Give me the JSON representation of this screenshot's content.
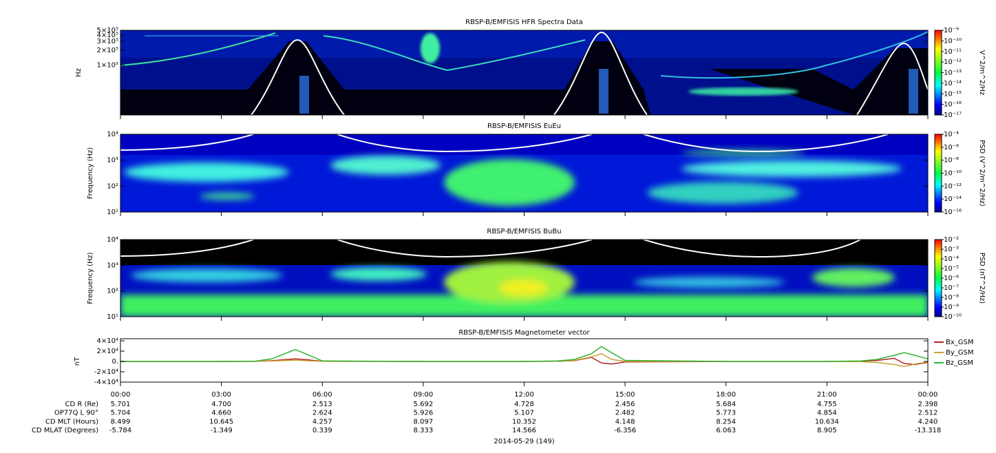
{
  "chart_data": [
    {
      "type": "spectrogram",
      "title": "RBSP-B/EMFISIS  HFR Spectra Data",
      "y_label": "Hz",
      "log_y": true,
      "ylim": [
        10000,
        500000
      ],
      "yticks": [
        {
          "value": 100000,
          "label": "1×10⁵"
        },
        {
          "value": 200000,
          "label": "2×10⁵"
        },
        {
          "value": 300000,
          "label": "3×10⁵"
        },
        {
          "value": 400000,
          "label": "4×10⁵"
        },
        {
          "value": 500000,
          "label": "5×10⁵"
        }
      ],
      "colorbar_label": "V^2/m^2/Hz",
      "clim": [
        1e-17,
        1e-09
      ],
      "cticks": [
        {
          "value": 1e-09,
          "label": "10⁻⁹"
        },
        {
          "value": 1e-10,
          "label": "10⁻¹⁰"
        },
        {
          "value": 1e-11,
          "label": "10⁻¹¹"
        },
        {
          "value": 1e-12,
          "label": "10⁻¹²"
        },
        {
          "value": 1e-13,
          "label": "10⁻¹³"
        },
        {
          "value": 1e-14,
          "label": "10⁻¹⁴"
        },
        {
          "value": 1e-15,
          "label": "10⁻¹⁵"
        },
        {
          "value": 1e-16,
          "label": "10⁻¹⁶"
        },
        {
          "value": 1e-17,
          "label": "10⁻¹⁷"
        }
      ]
    },
    {
      "type": "spectrogram",
      "title": "RBSP-B/EMFISIS  EuEu",
      "y_label": "Frequency (Hz)",
      "log_y": true,
      "ylim": [
        10,
        10000
      ],
      "yticks": [
        {
          "value": 10,
          "label": "10¹"
        },
        {
          "value": 100,
          "label": "10²"
        },
        {
          "value": 1000,
          "label": "10³"
        },
        {
          "value": 10000,
          "label": "10⁴"
        }
      ],
      "colorbar_label": "PSD (V^2/m^2/Hz)",
      "clim": [
        1e-16,
        0.0001
      ],
      "cticks": [
        {
          "value": 0.0001,
          "label": "10⁻⁴"
        },
        {
          "value": 1e-06,
          "label": "10⁻⁶"
        },
        {
          "value": 1e-08,
          "label": "10⁻⁸"
        },
        {
          "value": 1e-10,
          "label": "10⁻¹⁰"
        },
        {
          "value": 1e-12,
          "label": "10⁻¹²"
        },
        {
          "value": 1e-14,
          "label": "10⁻¹⁴"
        },
        {
          "value": 1e-16,
          "label": "10⁻¹⁶"
        }
      ]
    },
    {
      "type": "spectrogram",
      "title": "RBSP-B/EMFISIS  BuBu",
      "y_label": "Frequency (Hz)",
      "log_y": true,
      "ylim": [
        10,
        10000
      ],
      "yticks": [
        {
          "value": 10,
          "label": "10¹"
        },
        {
          "value": 100,
          "label": "10²"
        },
        {
          "value": 1000,
          "label": "10³"
        },
        {
          "value": 10000,
          "label": "10⁴"
        }
      ],
      "colorbar_label": "PSD (nT^2/Hz)",
      "clim": [
        1e-10,
        0.01
      ],
      "cticks": [
        {
          "value": 0.01,
          "label": "10⁻²"
        },
        {
          "value": 0.001,
          "label": "10⁻³"
        },
        {
          "value": 0.0001,
          "label": "10⁻⁴"
        },
        {
          "value": 1e-05,
          "label": "10⁻⁵"
        },
        {
          "value": 1e-06,
          "label": "10⁻⁶"
        },
        {
          "value": 1e-07,
          "label": "10⁻⁷"
        },
        {
          "value": 1e-08,
          "label": "10⁻⁸"
        },
        {
          "value": 1e-09,
          "label": "10⁻⁹"
        },
        {
          "value": 1e-10,
          "label": "10⁻¹⁰"
        }
      ]
    },
    {
      "type": "line",
      "title": "RBSP-B/EMFISIS  Magnetometer vector",
      "y_label": "nT",
      "ylim": [
        -40000,
        40000
      ],
      "yticks": [
        {
          "value": 40000,
          "label": "4×10⁴"
        },
        {
          "value": 20000,
          "label": "2×10⁴"
        },
        {
          "value": 0,
          "label": "0."
        },
        {
          "value": -20000,
          "label": "-2×10⁴"
        },
        {
          "value": -40000,
          "label": "-4×10⁴"
        }
      ],
      "x": [
        0,
        3,
        4,
        4.5,
        5,
        5.2,
        5.5,
        6,
        9,
        12,
        13,
        13.5,
        14,
        14.3,
        14.6,
        15,
        18,
        21,
        22,
        22.5,
        23,
        23.3,
        23.6,
        24
      ],
      "xlim": [
        0,
        24
      ],
      "xticks": [
        {
          "value": 0,
          "label": "00:00"
        },
        {
          "value": 3,
          "label": "03:00"
        },
        {
          "value": 6,
          "label": "06:00"
        },
        {
          "value": 9,
          "label": "09:00"
        },
        {
          "value": 12,
          "label": "12:00"
        },
        {
          "value": 15,
          "label": "15:00"
        },
        {
          "value": 18,
          "label": "18:00"
        },
        {
          "value": 21,
          "label": "21:00"
        },
        {
          "value": 24,
          "label": "00:00"
        }
      ],
      "x_label": "2014-05-29 (149)",
      "series": [
        {
          "name": "Bx_GSM",
          "color": "#b22222",
          "values": [
            0,
            0,
            200,
            1500,
            4000,
            5000,
            3500,
            300,
            0,
            0,
            300,
            1500,
            8000,
            -3000,
            -5000,
            -1000,
            0,
            0,
            500,
            2000,
            6000,
            -4000,
            -6000,
            -2000
          ]
        },
        {
          "name": "By_GSM",
          "color": "#c8a032",
          "values": [
            0,
            0,
            100,
            800,
            2000,
            2500,
            1500,
            200,
            0,
            0,
            500,
            2000,
            9000,
            15000,
            4000,
            0,
            0,
            0,
            -500,
            -2000,
            -6000,
            -10000,
            -5000,
            -1000
          ]
        },
        {
          "name": "Bz_GSM",
          "color": "#32b432",
          "values": [
            0,
            0,
            500,
            5000,
            18000,
            23000,
            15000,
            1000,
            0,
            0,
            1000,
            4000,
            15000,
            29000,
            17000,
            2000,
            0,
            0,
            1000,
            4000,
            12000,
            17000,
            12000,
            5000
          ]
        }
      ],
      "ephemeris": [
        {
          "label": "CD R (Re)",
          "values": [
            "5.701",
            "4.700",
            "2.513",
            "5.692",
            "4.728",
            "2.456",
            "5.684",
            "4.755",
            "2.398"
          ]
        },
        {
          "label": "OP77Q L 90°",
          "values": [
            "5.704",
            "4.660",
            "2.624",
            "5.926",
            "5.107",
            "2.482",
            "5.773",
            "4.854",
            "2.512"
          ]
        },
        {
          "label": "CD MLT (Hours)",
          "values": [
            "8.499",
            "10.645",
            "4.257",
            "8.097",
            "10.352",
            "4.148",
            "8.254",
            "10.634",
            "4.240"
          ]
        },
        {
          "label": "CD MLAT (Degrees)",
          "values": [
            "-5.784",
            "-1.349",
            "0.339",
            "8.333",
            "14.566",
            "-6.356",
            "6.063",
            "8.905",
            "-13.318"
          ]
        }
      ]
    }
  ]
}
